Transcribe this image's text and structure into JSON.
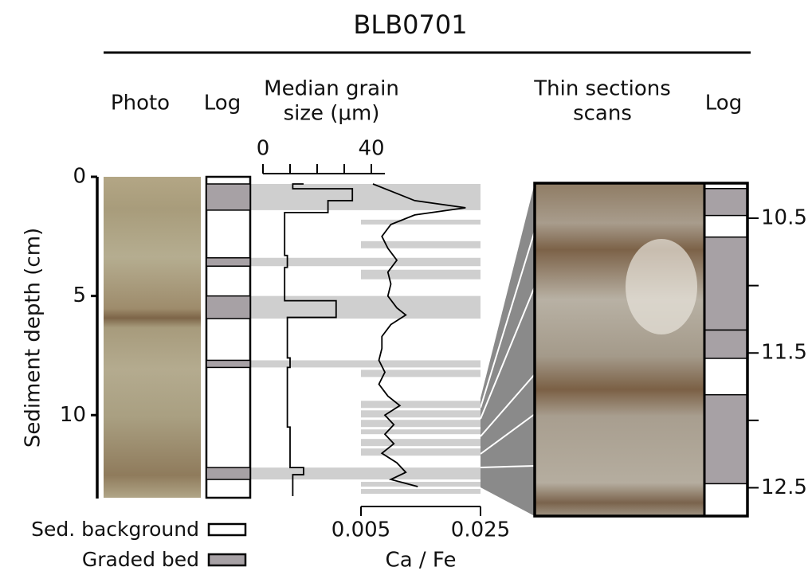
{
  "title": "BLB0701",
  "headers": {
    "photo": "Photo",
    "log": "Log",
    "grain": [
      "Median grain",
      "size (µm)"
    ],
    "thin": [
      "Thin sections",
      "scans"
    ],
    "thin_log": "Log"
  },
  "depth_axis": {
    "label": "Sediment depth (cm)",
    "ylim": [
      0,
      13.5
    ],
    "yticks": [
      0,
      5,
      10
    ]
  },
  "graded_beds": [
    [
      0.3,
      1.4
    ],
    [
      3.4,
      3.75
    ],
    [
      5.0,
      5.95
    ],
    [
      7.7,
      8.0
    ],
    [
      12.2,
      12.7
    ]
  ],
  "grain_size": {
    "type": "line",
    "depth": [
      0.3,
      0.3,
      0.5,
      0.5,
      1.0,
      1.0,
      1.5,
      1.5,
      3.3,
      3.3,
      3.8,
      3.8,
      5.2,
      5.2,
      5.9,
      5.9,
      7.6,
      7.6,
      8.0,
      8.0,
      10.5,
      10.5,
      12.2,
      12.2,
      12.5,
      12.5,
      13.4
    ],
    "values": [
      15,
      11,
      11,
      33,
      33,
      24,
      24,
      8,
      8,
      9,
      9,
      8,
      8,
      27,
      27,
      9,
      9,
      10,
      10,
      9,
      9,
      10,
      10,
      15,
      15,
      11,
      11
    ],
    "xlim": [
      0,
      45
    ],
    "xticks": [
      0,
      40
    ],
    "xminor": [
      10,
      20,
      30
    ]
  },
  "ca_fe": {
    "type": "line",
    "label": "Ca / Fe",
    "depth": [
      0.3,
      0.6,
      1.0,
      1.3,
      1.6,
      2.0,
      2.5,
      3.0,
      3.5,
      4.0,
      4.5,
      5.0,
      5.5,
      5.8,
      6.2,
      6.7,
      7.2,
      7.7,
      8.2,
      8.7,
      9.2,
      9.6,
      10.0,
      10.4,
      10.8,
      11.2,
      11.6,
      12.0,
      12.4,
      12.7,
      13.0
    ],
    "values": [
      0.007,
      0.01,
      0.014,
      0.0225,
      0.014,
      0.01,
      0.0085,
      0.0095,
      0.011,
      0.0095,
      0.01,
      0.0095,
      0.011,
      0.0125,
      0.01,
      0.0085,
      0.0085,
      0.008,
      0.009,
      0.008,
      0.0095,
      0.0115,
      0.009,
      0.0105,
      0.009,
      0.0105,
      0.0085,
      0.011,
      0.0125,
      0.01,
      0.0145
    ],
    "xlim": [
      0.005,
      0.025
    ],
    "xticks": [
      0.005,
      0.025
    ],
    "peaks": [
      [
        1.8,
        2.0
      ],
      [
        2.7,
        3.0
      ],
      [
        3.9,
        4.3
      ],
      [
        8.1,
        8.4
      ],
      [
        9.4,
        9.7
      ],
      [
        9.8,
        10.1
      ],
      [
        10.2,
        10.5
      ],
      [
        10.6,
        10.8
      ],
      [
        11.0,
        11.3
      ],
      [
        11.4,
        11.7
      ],
      [
        12.8,
        13.0
      ],
      [
        13.1,
        13.3
      ]
    ]
  },
  "thin_section": {
    "ylim": [
      10.24,
      12.71
    ],
    "yticks": [
      10.5,
      11.5,
      12.5
    ],
    "yminor": [
      11,
      12
    ],
    "graded_beds": [
      [
        10.28,
        10.48
      ],
      [
        10.64,
        11.33
      ],
      [
        11.33,
        11.54
      ],
      [
        11.81,
        12.47
      ]
    ]
  },
  "legend": {
    "background": "Sed. background",
    "graded": "Graded bed"
  }
}
